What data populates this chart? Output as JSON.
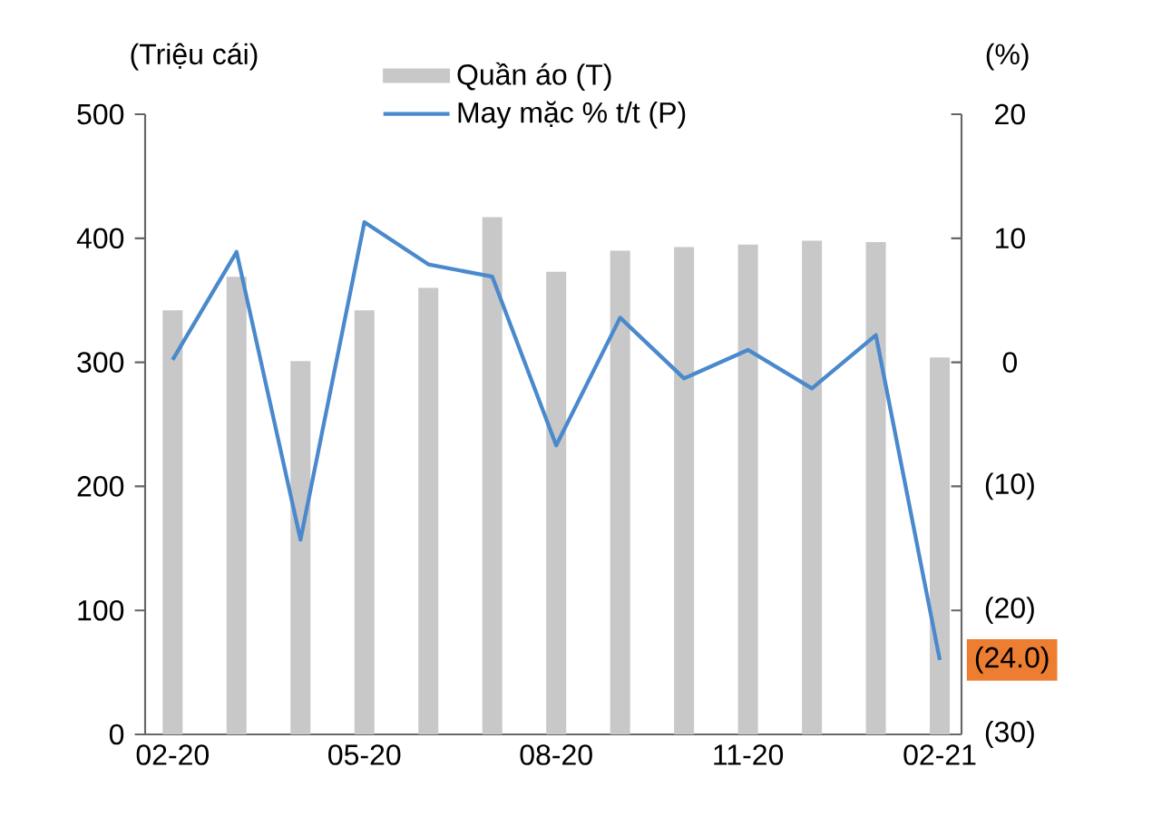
{
  "chart_data": {
    "type": "bar",
    "ylabel": "(Triệu cái)",
    "y2label": "(%)",
    "categories": [
      "02-20",
      null,
      null,
      "05-20",
      null,
      null,
      "08-20",
      null,
      null,
      "11-20",
      null,
      null,
      "02-21"
    ],
    "series": [
      {
        "name": "Quần áo (T)",
        "color": "#c8c8c8",
        "values": [
          342,
          369,
          301,
          342,
          360,
          417,
          373,
          390,
          393,
          395,
          398,
          397,
          304
        ]
      },
      {
        "name": "May mặc % t/t (P)",
        "type": "line",
        "axis": "y2",
        "color": "#4a89cc",
        "values": [
          0.2,
          8.9,
          -14.3,
          11.3,
          7.9,
          6.9,
          -6.7,
          3.6,
          -1.3,
          1.0,
          -2.1,
          2.2,
          -24.0
        ]
      }
    ],
    "ylim": [
      0,
      500
    ],
    "yticks": [
      0,
      100,
      200,
      300,
      400,
      500
    ],
    "y2lim": [
      -30,
      20
    ],
    "y2ticks": [
      {
        "value": -30,
        "label": "(30)"
      },
      {
        "value": -20,
        "label": "(20)"
      },
      {
        "value": -10,
        "label": "(10)"
      },
      0,
      10,
      20
    ],
    "annotations": [
      "(24.0)"
    ],
    "legend": "top",
    "marker": "none",
    "line_style": "solid"
  }
}
